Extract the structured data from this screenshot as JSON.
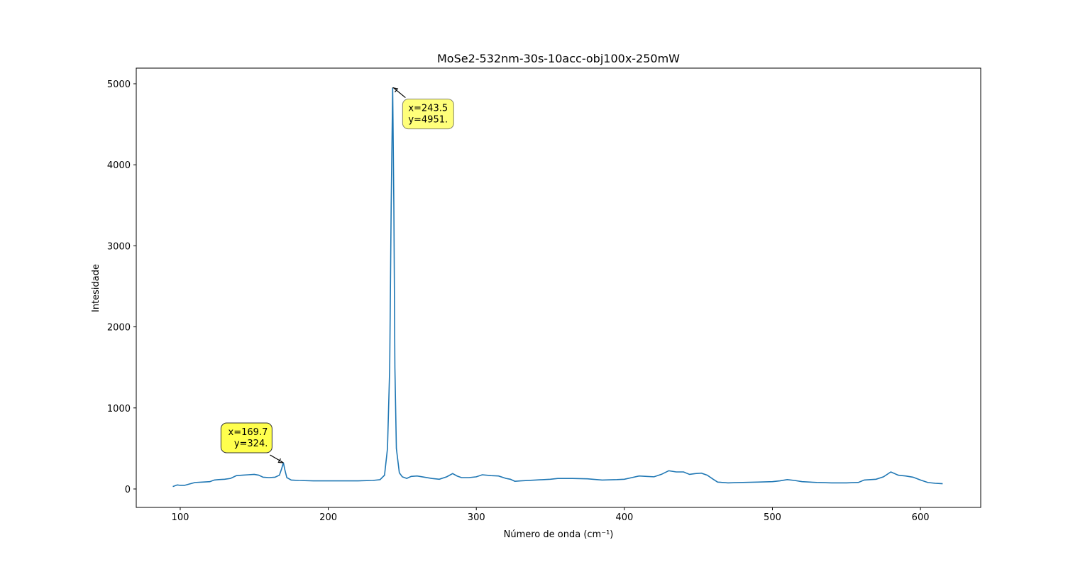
{
  "chart_data": {
    "type": "line",
    "title": "MoSe2-532nm-30s-10acc-obj100x-250mW",
    "x_label": "Número de onda (cm⁻¹)",
    "y_label": "Intesidade",
    "xlim": [
      70.3,
      640.7
    ],
    "ylim": [
      -227.7,
      5192.6
    ],
    "xticks": [
      100,
      200,
      300,
      400,
      500,
      600
    ],
    "yticks": [
      0,
      1000,
      2000,
      3000,
      4000,
      5000
    ],
    "grid": false,
    "series": [
      {
        "color": "#1f77b4",
        "x": [
          95,
          98,
          100,
          103,
          106,
          110,
          115,
          120,
          123,
          126,
          130,
          134,
          138,
          142,
          146,
          150,
          153,
          156,
          160,
          164,
          167,
          168.5,
          169.7,
          170.5,
          172,
          175,
          180,
          190,
          200,
          210,
          220,
          230,
          235,
          238,
          240,
          241.5,
          242.5,
          243.5,
          244.3,
          245,
          246,
          248,
          250,
          253,
          256,
          260,
          265,
          270,
          275,
          280,
          284,
          287,
          290,
          295,
          300,
          304,
          310,
          315,
          320,
          323,
          326,
          330,
          340,
          350,
          355,
          365,
          375,
          385,
          395,
          400,
          405,
          410,
          415,
          420,
          425,
          430,
          435,
          440,
          444,
          448,
          452,
          456,
          460,
          463,
          470,
          480,
          490,
          500,
          505,
          510,
          515,
          520,
          530,
          540,
          550,
          558,
          562,
          570,
          575,
          580,
          585,
          590,
          595,
          600,
          605,
          610,
          615
        ],
        "values": [
          30,
          50,
          45,
          45,
          60,
          80,
          85,
          90,
          110,
          115,
          120,
          130,
          165,
          170,
          175,
          180,
          170,
          145,
          140,
          145,
          170,
          250,
          324,
          250,
          140,
          110,
          105,
          100,
          100,
          100,
          100,
          105,
          115,
          170,
          500,
          1500,
          3500,
          4951,
          3500,
          1500,
          500,
          200,
          150,
          130,
          155,
          160,
          145,
          130,
          120,
          150,
          190,
          160,
          140,
          140,
          150,
          175,
          165,
          160,
          130,
          120,
          95,
          100,
          110,
          120,
          130,
          130,
          125,
          110,
          115,
          120,
          140,
          160,
          155,
          150,
          180,
          225,
          210,
          210,
          180,
          190,
          195,
          170,
          120,
          85,
          75,
          80,
          85,
          90,
          100,
          115,
          105,
          90,
          80,
          75,
          75,
          80,
          110,
          120,
          150,
          210,
          170,
          160,
          145,
          110,
          80,
          70,
          65
        ]
      }
    ],
    "annotations": [
      {
        "text": [
          "x=243.5",
          "y=4951."
        ],
        "x": 243.5,
        "y": 4951
      },
      {
        "text": [
          "x=169.7",
          "y=324."
        ],
        "x": 169.7,
        "y": 324
      }
    ]
  }
}
